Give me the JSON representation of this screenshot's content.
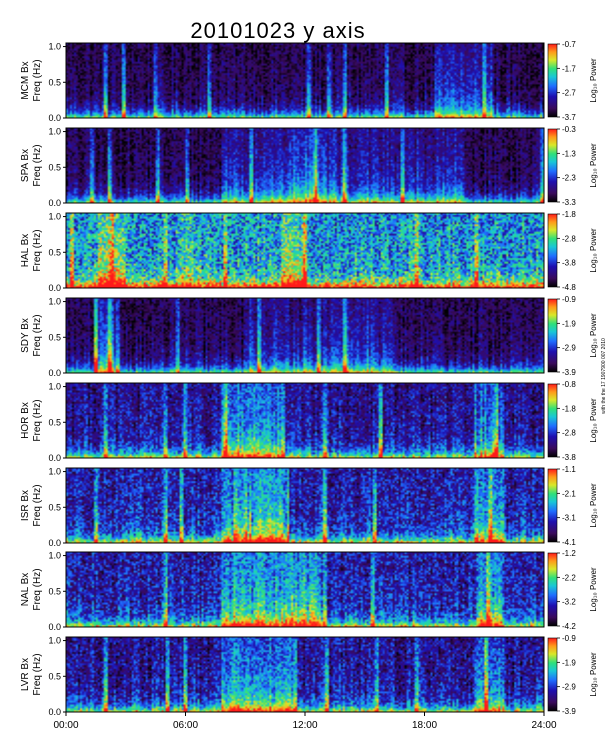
{
  "chart_data": {
    "type": "heatmap",
    "title": "20101023 y axis",
    "xlabel": "",
    "x_ticks": [
      "00:00",
      "06:00",
      "12:00",
      "18:00",
      "24:00"
    ],
    "xlim_hours": [
      0,
      24
    ],
    "ylim_hz": [
      0,
      1.05
    ],
    "y_ticks": [
      "0.0",
      "0.5",
      "1.0"
    ],
    "colorbar_label": "Log₁₀ Power",
    "colormap": [
      "#000000",
      "#3a0a5c",
      "#1e0fb0",
      "#1f6cff",
      "#19c7d6",
      "#2fe07a",
      "#d9e82a",
      "#ff9a1a",
      "#ff1a1a"
    ],
    "side_note": "with the the 17 1907900 007 2010",
    "panels": [
      {
        "station": "MCM Bx",
        "ylabel_freq": "Freq (Hz)",
        "cb_ticks": [
          "-0.7",
          "-1.7",
          "-2.7",
          "-3.7"
        ]
      },
      {
        "station": "SPA Bx",
        "ylabel_freq": "Freq (Hz)",
        "cb_ticks": [
          "-0.3",
          "-1.3",
          "-2.3",
          "-3.3"
        ]
      },
      {
        "station": "HAL Bx",
        "ylabel_freq": "Freq (Hz)",
        "cb_ticks": [
          "-1.8",
          "-2.8",
          "-3.8",
          "-4.8"
        ]
      },
      {
        "station": "SDY Bx",
        "ylabel_freq": "Freq (Hz)",
        "cb_ticks": [
          "-0.9",
          "-1.9",
          "-2.9",
          "-3.9"
        ]
      },
      {
        "station": "HOR Bx",
        "ylabel_freq": "Freq (Hz)",
        "cb_ticks": [
          "-0.8",
          "-1.8",
          "-2.8",
          "-3.8"
        ]
      },
      {
        "station": "ISR Bx",
        "ylabel_freq": "Freq (Hz)",
        "cb_ticks": [
          "-1.1",
          "-2.1",
          "-3.1",
          "-4.1"
        ]
      },
      {
        "station": "NAL Bx",
        "ylabel_freq": "Freq (Hz)",
        "cb_ticks": [
          "-1.2",
          "-2.2",
          "-3.2",
          "-4.2"
        ]
      },
      {
        "station": "LVR Bx",
        "ylabel_freq": "Freq (Hz)",
        "cb_ticks": [
          "-0.9",
          "-1.9",
          "-2.9",
          "-3.9"
        ]
      }
    ]
  }
}
